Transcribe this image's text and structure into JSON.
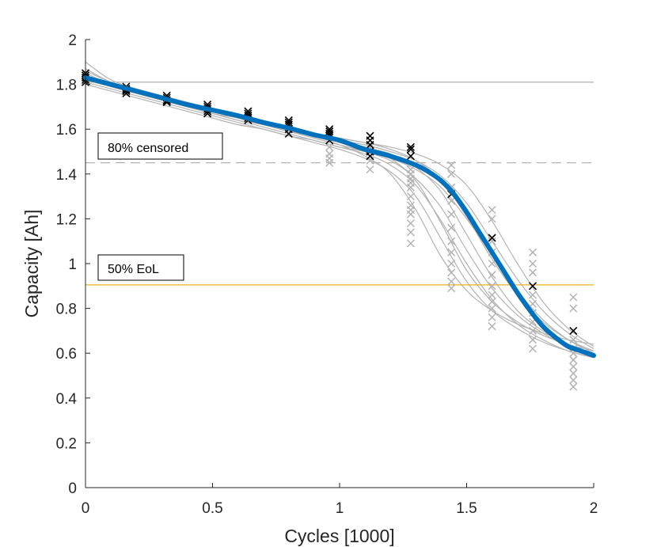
{
  "chart_data": {
    "type": "scatter",
    "xlabel": "Cycles [1000]",
    "ylabel": "Capacity [Ah]",
    "xlim": [
      0,
      2
    ],
    "ylim": [
      0,
      2
    ],
    "xticks": [
      0,
      0.5,
      1,
      1.5,
      2
    ],
    "xtick_labels": [
      "0",
      "0.5",
      "1",
      "1.5",
      "2"
    ],
    "yticks": [
      0,
      0.2,
      0.4,
      0.6,
      0.8,
      1,
      1.2,
      1.4,
      1.6,
      1.8,
      2
    ],
    "ytick_labels": [
      "0",
      "0.2",
      "0.4",
      "0.6",
      "0.8",
      "1",
      "1.2",
      "1.4",
      "1.6",
      "1.8",
      "2"
    ],
    "grid": false,
    "reference_lines": [
      {
        "name": "initial-capacity",
        "y": 1.81,
        "color": "#b3b3b3",
        "style": "solid"
      },
      {
        "name": "80-censored",
        "y": 1.45,
        "color": "#b3b3b3",
        "style": "dashed"
      },
      {
        "name": "50-eol",
        "y": 0.905,
        "color": "#edb120",
        "style": "solid"
      }
    ],
    "annotations": [
      {
        "name": "annotation-80-censored",
        "text": "80% censored"
      },
      {
        "name": "annotation-50-eol",
        "text": "50% EoL"
      }
    ],
    "mean_fit": {
      "name": "mean-degradation-fit",
      "color": "#0072bd",
      "x": [
        0,
        0.1,
        0.2,
        0.3,
        0.4,
        0.5,
        0.6,
        0.7,
        0.8,
        0.9,
        1.0,
        1.1,
        1.2,
        1.3,
        1.35,
        1.4,
        1.45,
        1.5,
        1.55,
        1.6,
        1.65,
        1.7,
        1.75,
        1.8,
        1.85,
        1.9,
        1.95,
        2.0
      ],
      "y": [
        1.83,
        1.8,
        1.77,
        1.74,
        1.71,
        1.685,
        1.66,
        1.63,
        1.605,
        1.575,
        1.55,
        1.51,
        1.48,
        1.44,
        1.41,
        1.37,
        1.31,
        1.23,
        1.14,
        1.05,
        0.96,
        0.87,
        0.79,
        0.72,
        0.67,
        0.63,
        0.61,
        0.59
      ]
    },
    "cells": {
      "color": "#b3b3b3",
      "x": [
        0,
        0.1,
        0.2,
        0.3,
        0.4,
        0.5,
        0.6,
        0.7,
        0.8,
        0.9,
        1.0,
        1.1,
        1.2,
        1.3,
        1.4,
        1.5,
        1.6,
        1.7,
        1.8,
        1.9,
        2.0
      ],
      "series": [
        {
          "name": "cell-1",
          "y": [
            1.9,
            1.82,
            1.78,
            1.75,
            1.72,
            1.69,
            1.66,
            1.63,
            1.6,
            1.57,
            1.53,
            1.48,
            1.4,
            1.24,
            1.03,
            0.88,
            0.79,
            0.73,
            0.69,
            0.66,
            0.64
          ]
        },
        {
          "name": "cell-2",
          "y": [
            1.87,
            1.81,
            1.78,
            1.75,
            1.72,
            1.69,
            1.66,
            1.63,
            1.6,
            1.58,
            1.55,
            1.52,
            1.47,
            1.37,
            1.18,
            0.97,
            0.83,
            0.74,
            0.68,
            0.64,
            0.61
          ]
        },
        {
          "name": "cell-3",
          "y": [
            1.85,
            1.8,
            1.77,
            1.74,
            1.71,
            1.68,
            1.65,
            1.62,
            1.6,
            1.58,
            1.56,
            1.54,
            1.51,
            1.46,
            1.37,
            1.21,
            1.02,
            0.86,
            0.74,
            0.66,
            0.61
          ]
        },
        {
          "name": "cell-4",
          "y": [
            1.83,
            1.79,
            1.76,
            1.73,
            1.7,
            1.67,
            1.64,
            1.62,
            1.59,
            1.57,
            1.55,
            1.52,
            1.49,
            1.43,
            1.32,
            1.13,
            0.94,
            0.79,
            0.7,
            0.64,
            0.6
          ]
        },
        {
          "name": "cell-5",
          "y": [
            1.82,
            1.79,
            1.76,
            1.73,
            1.7,
            1.67,
            1.64,
            1.61,
            1.58,
            1.55,
            1.52,
            1.49,
            1.44,
            1.35,
            1.19,
            1.0,
            0.84,
            0.73,
            0.66,
            0.61,
            0.58
          ]
        },
        {
          "name": "cell-6",
          "y": [
            1.81,
            1.78,
            1.75,
            1.72,
            1.69,
            1.66,
            1.63,
            1.6,
            1.57,
            1.55,
            1.52,
            1.5,
            1.47,
            1.42,
            1.34,
            1.2,
            1.04,
            0.88,
            0.75,
            0.66,
            0.6
          ]
        },
        {
          "name": "cell-7",
          "y": [
            1.84,
            1.8,
            1.77,
            1.74,
            1.71,
            1.68,
            1.65,
            1.62,
            1.6,
            1.57,
            1.55,
            1.53,
            1.5,
            1.46,
            1.39,
            1.27,
            1.1,
            0.93,
            0.79,
            0.69,
            0.62
          ]
        },
        {
          "name": "cell-8",
          "y": [
            1.86,
            1.81,
            1.78,
            1.74,
            1.71,
            1.68,
            1.65,
            1.63,
            1.6,
            1.58,
            1.56,
            1.54,
            1.52,
            1.49,
            1.44,
            1.35,
            1.19,
            1.0,
            0.83,
            0.71,
            0.63
          ]
        },
        {
          "name": "cell-9",
          "y": [
            1.8,
            1.77,
            1.74,
            1.71,
            1.68,
            1.65,
            1.62,
            1.6,
            1.57,
            1.54,
            1.51,
            1.47,
            1.41,
            1.3,
            1.11,
            0.92,
            0.79,
            0.71,
            0.65,
            0.61,
            0.58
          ]
        },
        {
          "name": "cell-10",
          "y": [
            1.83,
            1.79,
            1.76,
            1.73,
            1.7,
            1.67,
            1.65,
            1.62,
            1.59,
            1.56,
            1.53,
            1.5,
            1.46,
            1.38,
            1.25,
            1.06,
            0.89,
            0.77,
            0.69,
            0.63,
            0.59
          ]
        }
      ]
    },
    "observed_censored": {
      "color": "#b3b3b3",
      "marker": "x",
      "points": [
        {
          "x": 0.96,
          "ys": [
            1.47,
            1.45,
            1.49,
            1.52
          ]
        },
        {
          "x": 1.12,
          "ys": [
            1.46,
            1.48,
            1.52,
            1.42
          ]
        },
        {
          "x": 1.28,
          "ys": [
            1.42,
            1.38,
            1.34,
            1.3,
            1.26,
            1.22,
            1.18,
            1.14,
            1.09,
            1.4,
            1.36,
            1.24
          ]
        },
        {
          "x": 1.44,
          "ys": [
            1.44,
            1.4,
            1.34,
            1.28,
            1.22,
            1.16,
            1.1,
            1.05,
            1.0,
            0.96,
            0.92,
            0.89
          ]
        },
        {
          "x": 1.6,
          "ys": [
            1.24,
            1.2,
            1.1,
            1.05,
            1.0,
            0.95,
            0.9,
            0.86,
            0.83,
            0.8,
            0.76,
            0.72
          ]
        },
        {
          "x": 1.76,
          "ys": [
            1.05,
            1.0,
            0.96,
            0.86,
            0.82,
            0.78,
            0.74,
            0.7,
            0.66,
            0.62
          ]
        },
        {
          "x": 1.92,
          "ys": [
            0.85,
            0.8,
            0.66,
            0.62,
            0.6,
            0.57,
            0.54,
            0.51,
            0.48,
            0.45
          ]
        }
      ]
    },
    "observed_measured": {
      "color": "#000000",
      "marker": "x",
      "points": [
        {
          "x": 0.0,
          "ys": [
            1.81,
            1.83,
            1.84,
            1.85,
            1.82
          ]
        },
        {
          "x": 0.16,
          "ys": [
            1.76,
            1.77,
            1.78,
            1.79,
            1.775
          ]
        },
        {
          "x": 0.32,
          "ys": [
            1.72,
            1.73,
            1.74,
            1.75,
            1.725
          ]
        },
        {
          "x": 0.48,
          "ys": [
            1.67,
            1.68,
            1.69,
            1.7,
            1.71
          ]
        },
        {
          "x": 0.64,
          "ys": [
            1.64,
            1.65,
            1.66,
            1.67,
            1.68
          ]
        },
        {
          "x": 0.8,
          "ys": [
            1.58,
            1.6,
            1.62,
            1.63,
            1.64
          ]
        },
        {
          "x": 0.96,
          "ys": [
            1.55,
            1.57,
            1.59,
            1.6,
            1.58
          ]
        },
        {
          "x": 1.12,
          "ys": [
            1.48,
            1.5,
            1.53,
            1.55,
            1.57
          ]
        },
        {
          "x": 1.28,
          "ys": [
            1.48,
            1.51,
            1.52
          ]
        },
        {
          "x": 1.44,
          "ys": [
            1.31
          ]
        },
        {
          "x": 1.6,
          "ys": [
            1.115
          ]
        },
        {
          "x": 1.76,
          "ys": [
            0.9
          ]
        },
        {
          "x": 1.92,
          "ys": [
            0.7
          ]
        }
      ]
    }
  }
}
